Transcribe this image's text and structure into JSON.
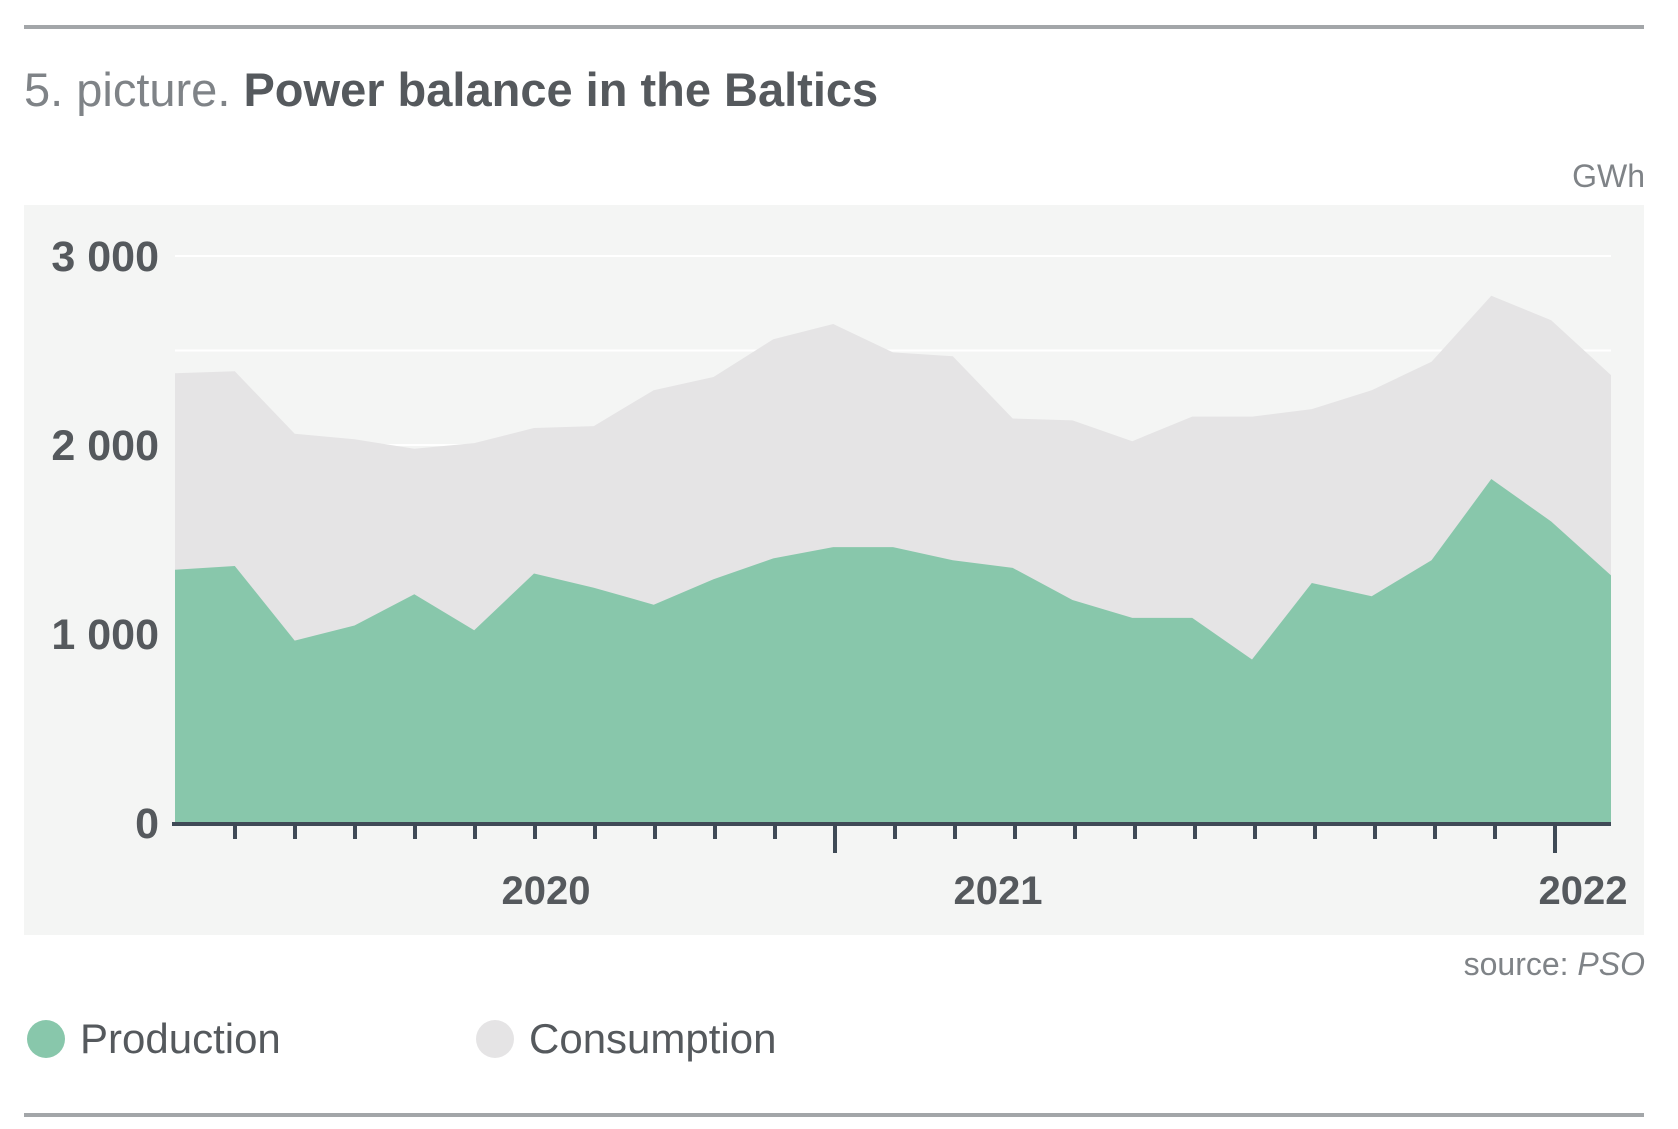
{
  "header": {
    "lead": "5. picture.",
    "title": "Power balance in the Baltics"
  },
  "unit_label": "GWh",
  "source": {
    "prefix": "source: ",
    "name": "PSO"
  },
  "colors": {
    "production": "#88c7ab",
    "consumption": "#e5e4e5",
    "axis": "#3f4a56",
    "text_dark": "#55595d",
    "text_light": "#7f8387"
  },
  "legend": [
    {
      "name": "Production",
      "color": "#88c7ab"
    },
    {
      "name": "Consumption",
      "color": "#e5e4e5"
    }
  ],
  "chart_data": {
    "type": "area",
    "title": "Power balance in the Baltics",
    "ylabel": "GWh",
    "xlabel": "",
    "ylim": [
      0,
      3000
    ],
    "y_ticks": [
      0,
      1000,
      2000,
      3000
    ],
    "y_tick_labels": [
      "0",
      "1 000",
      "2 000",
      "3 000"
    ],
    "x_axis": "monthly, 2019 – 2022",
    "x_tick_labels": [
      {
        "label": "2020",
        "month_index": 6
      },
      {
        "label": "2021",
        "month_index": 18
      },
      {
        "label": "2022",
        "month_index": 30
      }
    ],
    "series": [
      {
        "name": "Production",
        "values": [
          1340,
          1360,
          965,
          1045,
          1210,
          1020,
          1320,
          1245,
          1155,
          1290,
          1400,
          1460,
          1460,
          1390,
          1350,
          1180,
          1085,
          1085,
          865,
          1270,
          1200,
          1390,
          1820,
          1595,
          1310
        ]
      },
      {
        "name": "Consumption",
        "values": [
          2380,
          2390,
          2060,
          2030,
          1980,
          2010,
          2090,
          2100,
          2290,
          2360,
          2560,
          2640,
          2490,
          2470,
          2140,
          2130,
          2020,
          2150,
          2150,
          2190,
          2290,
          2440,
          2790,
          2660,
          2370
        ]
      }
    ],
    "grid": true,
    "legend_position": "bottom-left"
  }
}
